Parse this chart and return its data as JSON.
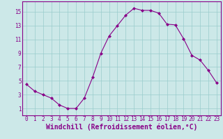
{
  "x": [
    0,
    1,
    2,
    3,
    4,
    5,
    6,
    7,
    8,
    9,
    10,
    11,
    12,
    13,
    14,
    15,
    16,
    17,
    18,
    19,
    20,
    21,
    22,
    23
  ],
  "y": [
    4.5,
    3.5,
    3.0,
    2.5,
    1.5,
    1.0,
    1.0,
    2.5,
    5.5,
    9.0,
    11.5,
    13.0,
    14.5,
    15.5,
    15.2,
    15.2,
    14.8,
    13.2,
    13.1,
    11.1,
    8.7,
    8.0,
    6.5,
    4.7
  ],
  "line_color": "#880088",
  "marker": "D",
  "marker_size": 2.0,
  "bg_color": "#cce8e8",
  "grid_color": "#99cccc",
  "xlabel": "Windchill (Refroidissement éolien,°C)",
  "xlabel_color": "#880088",
  "xlim": [
    -0.5,
    23.5
  ],
  "ylim": [
    0,
    16.5
  ],
  "xticks": [
    0,
    1,
    2,
    3,
    4,
    5,
    6,
    7,
    8,
    9,
    10,
    11,
    12,
    13,
    14,
    15,
    16,
    17,
    18,
    19,
    20,
    21,
    22,
    23
  ],
  "yticks": [
    1,
    3,
    5,
    7,
    9,
    11,
    13,
    15
  ],
  "tick_color": "#880088",
  "tick_fontsize": 5.5,
  "xlabel_fontsize": 7.0
}
